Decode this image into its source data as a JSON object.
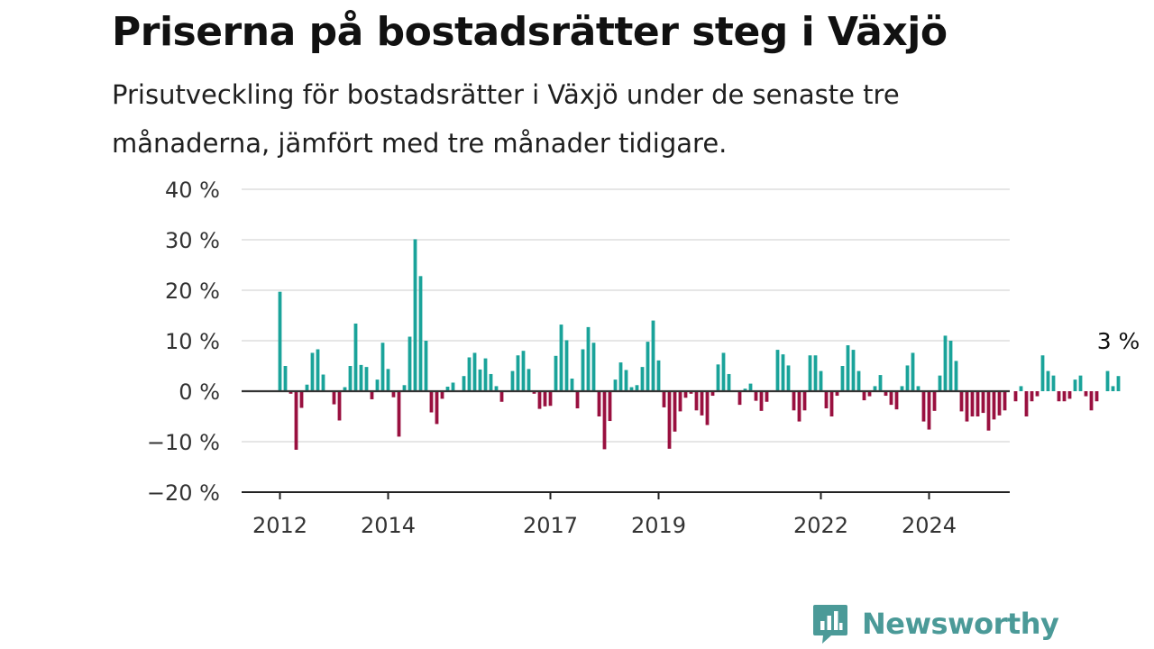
{
  "title": "Priserna på bostadsrätter steg i Växjö",
  "subtitle": "Prisutveckling för bostadsrätter i Växjö under de senaste tre månaderna, jämfört med tre månader tidigare.",
  "brand": {
    "name": "Newsworthy",
    "icon": "newsworthy-logo-icon",
    "color": "#4b9a98"
  },
  "colors": {
    "positive": "#1aa39a",
    "negative": "#99103f",
    "grid": "#dddddd",
    "zero_line": "#333333"
  },
  "chart_data": {
    "type": "bar",
    "ylim": [
      -20,
      40
    ],
    "yticks": [
      40,
      30,
      20,
      10,
      0,
      -10,
      -20
    ],
    "ytick_labels": [
      "40 %",
      "30 %",
      "20 %",
      "10 %",
      "0 %",
      "−10 %",
      "−20 %"
    ],
    "xticks": [
      "2012",
      "2014",
      "2017",
      "2019",
      "2022",
      "2024"
    ],
    "xtick_positions_month_index": [
      0,
      20,
      50,
      70,
      100,
      120
    ],
    "start": "2012-01",
    "grid": true,
    "legend": "none",
    "annotation": {
      "text": "3 %",
      "target": "last"
    },
    "values": [
      19.7,
      5,
      -0.5,
      -11.6,
      -3.3,
      1.3,
      7.6,
      8.3,
      3.3,
      0,
      -2.6,
      -5.8,
      0.8,
      5,
      13.4,
      5.2,
      4.8,
      -1.6,
      2.3,
      9.6,
      4.4,
      -1.2,
      -9,
      1.2,
      10.8,
      30.1,
      22.8,
      10,
      -4.2,
      -6.5,
      -1.5,
      0.9,
      1.7,
      0,
      3,
      6.7,
      7.6,
      4.3,
      6.5,
      3.4,
      1,
      -2.1,
      0,
      4,
      7.1,
      8,
      4.4,
      -0.5,
      -3.5,
      -3,
      -2.9,
      7,
      13.2,
      10.1,
      2.5,
      -3.4,
      8.3,
      12.7,
      9.6,
      -5,
      -11.5,
      -5.9,
      2.3,
      5.7,
      4.2,
      0.8,
      1.2,
      4.8,
      9.8,
      14,
      6.1,
      -3.2,
      -11.4,
      -8,
      -4,
      -1.3,
      -0.5,
      -3.8,
      -4.8,
      -6.7,
      -0.9,
      5.3,
      7.6,
      3.4,
      0,
      -2.7,
      0.5,
      1.5,
      -1.9,
      -3.9,
      -2.1,
      0,
      8.2,
      7.3,
      5.1,
      -3.8,
      -6,
      -3.8,
      7.1,
      7.1,
      4,
      -3.4,
      -5,
      -0.9,
      5,
      9.1,
      8.2,
      4,
      -1.8,
      -1,
      1,
      3.2,
      -0.9,
      -2.7,
      -3.6,
      1,
      5.1,
      7.6,
      1,
      -6,
      -7.6,
      -3.9,
      3.1,
      11,
      10,
      6,
      -4,
      -6,
      -5,
      -5,
      -4.3,
      -7.8,
      -5.6,
      -4.8,
      -3.8,
      0,
      -2,
      1,
      -5,
      -2,
      -1,
      7.1,
      4,
      3.1,
      -2,
      -2,
      -1.5,
      2.3,
      3.1,
      -1,
      -3.8,
      -2,
      0,
      4,
      1,
      3
    ]
  }
}
